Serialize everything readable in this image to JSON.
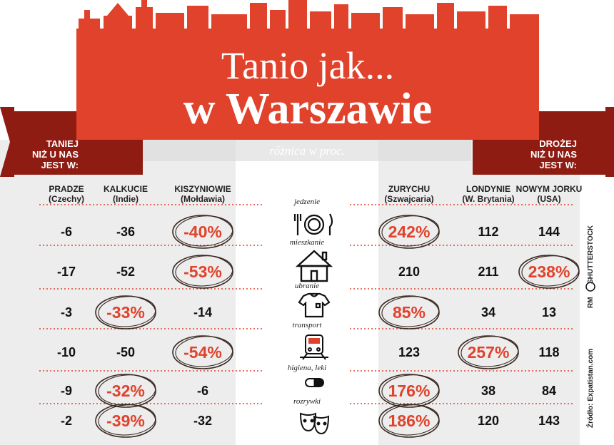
{
  "title": {
    "line1": "Tanio jak...",
    "line2": "w Warszawie",
    "subtitle": "różnica w proc."
  },
  "left_banner": "TANIEJ\nNIŻ U NAS\nJEST W:",
  "right_banner": "DROŻEJ\nNIŻ U NAS\nJEST W:",
  "credits": {
    "photo": "SHUTTERSTOCK",
    "author": "RM",
    "source": "Źródło: Expatistan.com"
  },
  "colors": {
    "accent": "#e0422b",
    "dark_ribbon": "#8e1c12",
    "grey_band": "#ededed",
    "circle_stroke": "#3a2a22"
  },
  "chart_data": {
    "type": "table",
    "title": "Tanio jak... w Warszawie",
    "subtitle": "różnica w proc.",
    "categories": [
      "jedzenie",
      "mieszkanie",
      "ubranie",
      "transport",
      "higiena, leki",
      "rozrywki"
    ],
    "category_icons": [
      "plate-cutlery-icon",
      "house-icon",
      "tshirt-icon",
      "train-icon",
      "pill-icon",
      "theater-masks-icon"
    ],
    "series": [
      {
        "name": "PRADZE\n(Czechy)",
        "group": "cheaper",
        "values": [
          -6,
          -17,
          -3,
          -10,
          -9,
          -2
        ]
      },
      {
        "name": "KALKUCIE\n(Indie)",
        "group": "cheaper",
        "values": [
          -36,
          -52,
          -33,
          -50,
          -32,
          -39
        ]
      },
      {
        "name": "KISZYNIOWIE\n(Mołdawia)",
        "group": "cheaper",
        "values": [
          -40,
          -53,
          -14,
          -54,
          -6,
          -32
        ]
      },
      {
        "name": "ZURYCHU\n(Szwajcaria)",
        "group": "more_expensive",
        "values": [
          242,
          210,
          85,
          123,
          176,
          186
        ]
      },
      {
        "name": "LONDYNIE\n(W. Brytania)",
        "group": "more_expensive",
        "values": [
          112,
          211,
          34,
          257,
          38,
          120
        ]
      },
      {
        "name": "NOWYM JORKU\n(USA)",
        "group": "more_expensive",
        "values": [
          144,
          238,
          13,
          118,
          84,
          143
        ]
      }
    ],
    "highlighted": [
      [
        2,
        0
      ],
      [
        2,
        1
      ],
      [
        1,
        2
      ],
      [
        2,
        3
      ],
      [
        1,
        4
      ],
      [
        1,
        5
      ],
      [
        3,
        0
      ],
      [
        3,
        2
      ],
      [
        3,
        4
      ],
      [
        3,
        5
      ],
      [
        4,
        3
      ],
      [
        5,
        1
      ]
    ],
    "unit_suffix": "%"
  }
}
